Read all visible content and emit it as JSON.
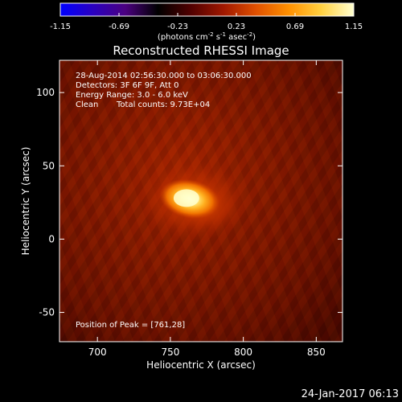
{
  "chart_data": {
    "type": "heatmap",
    "title": "Reconstructed RHESSI Image",
    "xlabel": "Heliocentric X (arcsec)",
    "ylabel": "Heliocentric Y (arcsec)",
    "xlim": [
      674,
      868
    ],
    "ylim": [
      -70,
      122
    ],
    "xticks": [
      700,
      750,
      800,
      850
    ],
    "yticks": [
      -50,
      0,
      50,
      100
    ],
    "colorbar": {
      "min": -1.15,
      "max": 1.15,
      "ticks": [
        "-1.15",
        "-0.69",
        "-0.23",
        "0.23",
        "0.69",
        "1.15"
      ],
      "unit_text": "(photons cm",
      "unit_sup1": "-2",
      "unit_mid": " s",
      "unit_sup2": "-1",
      "unit_mid2": " asec",
      "unit_sup3": "-2",
      "unit_end": ")",
      "colormap": [
        "#0000ff",
        "#2a00c0",
        "#4b0080",
        "#000000",
        "#500000",
        "#a01800",
        "#e05000",
        "#ff9000",
        "#ffd040",
        "#ffffd0"
      ]
    },
    "peak": {
      "x": 761,
      "y": 28,
      "value": 1.15
    },
    "annotations": {
      "line1": "28-Aug-2014 02:56:30.000 to 03:06:30.000",
      "line2": "Detectors: 3F 6F 9F, Att 0",
      "line3": "Energy Range: 3.0 - 6.0 keV",
      "line4_a": "Clean",
      "line4_b": "Total counts: 9.73E+04",
      "peak_text": "Position of Peak = [761,28]"
    },
    "footer_date": "24-Jan-2017 06:13"
  }
}
